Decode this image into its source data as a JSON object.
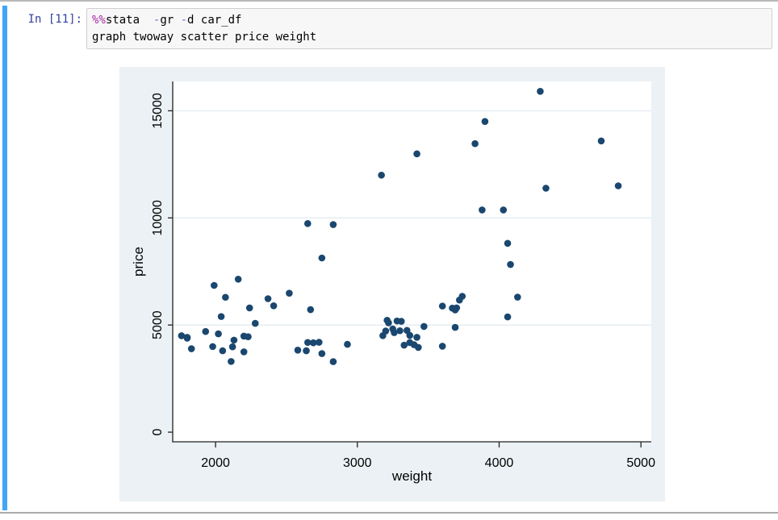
{
  "page": {
    "selection_bar_color": "#42a5f5"
  },
  "cell": {
    "prompt": "In [11]:",
    "code_lines": [
      [
        {
          "t": "%%",
          "c": "magic"
        },
        {
          "t": "stata",
          "c": "txt"
        },
        {
          "t": "  ",
          "c": "txt"
        },
        {
          "t": "-",
          "c": "op"
        },
        {
          "t": "gr",
          "c": "txt"
        },
        {
          "t": " ",
          "c": "txt"
        },
        {
          "t": "-",
          "c": "op"
        },
        {
          "t": "d",
          "c": "txt"
        },
        {
          "t": " car_df",
          "c": "txt"
        }
      ],
      [
        {
          "t": "graph twoway scatter price weight",
          "c": "txt"
        }
      ]
    ]
  },
  "chart_data": {
    "type": "scatter",
    "title": "",
    "xlabel": "weight",
    "ylabel": "price",
    "x_ticks": [
      2000,
      3000,
      4000,
      5000
    ],
    "y_ticks": [
      0,
      5000,
      10000,
      15000
    ],
    "grid_y": [
      5000,
      10000,
      15000
    ],
    "xlim": [
      1698,
      5073
    ],
    "ylim": [
      -450,
      16370
    ],
    "grid_on": true,
    "legend": "none",
    "marker_color": "#1a476f",
    "bg_color": "#ebf1f4",
    "plot_bg_color": "#ffffff",
    "grid_color": "#e3ebf2",
    "axis_color": "#222222",
    "points": [
      [
        2930,
        4099
      ],
      [
        3350,
        4749
      ],
      [
        2640,
        3799
      ],
      [
        3250,
        4816
      ],
      [
        4080,
        7827
      ],
      [
        3670,
        5788
      ],
      [
        2230,
        4453
      ],
      [
        3280,
        5189
      ],
      [
        3880,
        10372
      ],
      [
        3400,
        4082
      ],
      [
        4330,
        11385
      ],
      [
        3900,
        14500
      ],
      [
        4290,
        15906
      ],
      [
        2110,
        3299
      ],
      [
        3690,
        5705
      ],
      [
        3180,
        4504
      ],
      [
        3220,
        5104
      ],
      [
        2750,
        3667
      ],
      [
        3430,
        3955
      ],
      [
        2120,
        3984
      ],
      [
        3600,
        4010
      ],
      [
        3600,
        5886
      ],
      [
        3740,
        6342
      ],
      [
        1800,
        4389
      ],
      [
        2650,
        4187
      ],
      [
        4840,
        11497
      ],
      [
        4720,
        13594
      ],
      [
        3830,
        13466
      ],
      [
        2580,
        3829
      ],
      [
        4060,
        5379
      ],
      [
        3720,
        6165
      ],
      [
        3370,
        4516
      ],
      [
        4130,
        6303
      ],
      [
        2830,
        3291
      ],
      [
        4060,
        8814
      ],
      [
        3300,
        4733
      ],
      [
        3310,
        5172
      ],
      [
        3690,
        4890
      ],
      [
        3370,
        4181
      ],
      [
        2730,
        4195
      ],
      [
        4030,
        10371
      ],
      [
        3260,
        4647
      ],
      [
        1800,
        4425
      ],
      [
        2200,
        4482
      ],
      [
        2520,
        6486
      ],
      [
        3330,
        4060
      ],
      [
        3700,
        5798
      ],
      [
        3470,
        4934
      ],
      [
        3210,
        5222
      ],
      [
        3200,
        4723
      ],
      [
        3420,
        4424
      ],
      [
        2690,
        4172
      ],
      [
        2830,
        9690
      ],
      [
        2070,
        6295
      ],
      [
        2650,
        9735
      ],
      [
        2370,
        6229
      ],
      [
        2020,
        4589
      ],
      [
        2280,
        5079
      ],
      [
        2750,
        8129
      ],
      [
        2130,
        4296
      ],
      [
        2240,
        5799
      ],
      [
        1760,
        4499
      ],
      [
        1980,
        3995
      ],
      [
        3420,
        12990
      ],
      [
        1830,
        3895
      ],
      [
        2050,
        3798
      ],
      [
        2410,
        5899
      ],
      [
        2200,
        3748
      ],
      [
        2670,
        5719
      ],
      [
        2160,
        7140
      ],
      [
        2040,
        5397
      ],
      [
        1930,
        4697
      ],
      [
        1990,
        6850
      ],
      [
        3170,
        11995
      ]
    ]
  }
}
